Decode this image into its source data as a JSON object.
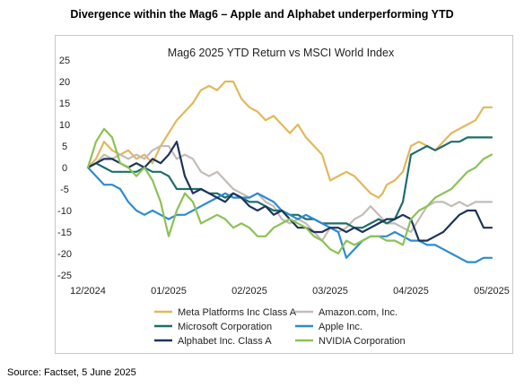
{
  "header": {
    "title": "Divergence within the Mag6 – Apple and Alphabet underperforming YTD"
  },
  "footer": {
    "source": "Source:  Factset, 5 June 2025"
  },
  "chart_data": {
    "type": "line",
    "title": "Mag6 2025 YTD Return vs MSCI World Index",
    "xlabel": "",
    "ylabel": "",
    "x_tick_labels": [
      "12/2024",
      "01/2025",
      "02/2025",
      "03/2025",
      "04/2025",
      "05/2025"
    ],
    "y_ticks": [
      25,
      20,
      15,
      10,
      5,
      0,
      -5,
      -10,
      -15,
      -20,
      -25
    ],
    "ylim": [
      -25,
      25
    ],
    "x_index_range": [
      0,
      100
    ],
    "grid": false,
    "legend_position": "bottom",
    "series": [
      {
        "name": "Meta Platforms Inc Class A",
        "color": "#E2B85A",
        "points": [
          [
            0,
            0
          ],
          [
            2,
            2
          ],
          [
            4,
            6
          ],
          [
            6,
            4
          ],
          [
            8,
            3
          ],
          [
            10,
            4
          ],
          [
            12,
            2
          ],
          [
            14,
            3
          ],
          [
            16,
            1
          ],
          [
            18,
            5
          ],
          [
            20,
            8
          ],
          [
            22,
            11
          ],
          [
            24,
            13
          ],
          [
            26,
            15
          ],
          [
            28,
            18
          ],
          [
            30,
            19
          ],
          [
            32,
            18
          ],
          [
            34,
            20
          ],
          [
            36,
            20
          ],
          [
            38,
            16
          ],
          [
            40,
            14
          ],
          [
            42,
            13
          ],
          [
            44,
            11
          ],
          [
            46,
            12
          ],
          [
            48,
            10
          ],
          [
            50,
            8
          ],
          [
            52,
            10
          ],
          [
            54,
            7
          ],
          [
            56,
            5
          ],
          [
            58,
            3
          ],
          [
            60,
            -3
          ],
          [
            62,
            -2
          ],
          [
            64,
            -1
          ],
          [
            66,
            -2
          ],
          [
            68,
            -4
          ],
          [
            70,
            -6
          ],
          [
            72,
            -7
          ],
          [
            73,
            -6
          ],
          [
            74,
            -4
          ],
          [
            76,
            -3
          ],
          [
            78,
            -1
          ],
          [
            80,
            5
          ],
          [
            82,
            6
          ],
          [
            84,
            5
          ],
          [
            86,
            4
          ],
          [
            88,
            6
          ],
          [
            90,
            8
          ],
          [
            92,
            9
          ],
          [
            94,
            10
          ],
          [
            96,
            11
          ],
          [
            98,
            14
          ],
          [
            100,
            14
          ]
        ]
      },
      {
        "name": "Amazon.com, Inc.",
        "color": "#C3BCB8",
        "points": [
          [
            0,
            0
          ],
          [
            2,
            1
          ],
          [
            4,
            3
          ],
          [
            6,
            2
          ],
          [
            8,
            3
          ],
          [
            10,
            2
          ],
          [
            12,
            3
          ],
          [
            14,
            2
          ],
          [
            16,
            4
          ],
          [
            18,
            5
          ],
          [
            20,
            5
          ],
          [
            22,
            2
          ],
          [
            24,
            3
          ],
          [
            26,
            2
          ],
          [
            28,
            -1
          ],
          [
            30,
            -2
          ],
          [
            32,
            -1
          ],
          [
            34,
            -3
          ],
          [
            36,
            -5
          ],
          [
            38,
            -6
          ],
          [
            40,
            -7
          ],
          [
            42,
            -6
          ],
          [
            44,
            -8
          ],
          [
            46,
            -9
          ],
          [
            48,
            -12
          ],
          [
            50,
            -13
          ],
          [
            52,
            -12
          ],
          [
            54,
            -13
          ],
          [
            56,
            -15
          ],
          [
            58,
            -17
          ],
          [
            60,
            -14
          ],
          [
            62,
            -15
          ],
          [
            64,
            -14
          ],
          [
            66,
            -12
          ],
          [
            68,
            -11
          ],
          [
            70,
            -9
          ],
          [
            72,
            -11
          ],
          [
            74,
            -13
          ],
          [
            76,
            -13
          ],
          [
            78,
            -14
          ],
          [
            80,
            -15
          ],
          [
            82,
            -12
          ],
          [
            84,
            -9
          ],
          [
            86,
            -8
          ],
          [
            88,
            -8
          ],
          [
            90,
            -9
          ],
          [
            92,
            -8
          ],
          [
            94,
            -9
          ],
          [
            96,
            -8
          ],
          [
            98,
            -8
          ],
          [
            100,
            -8
          ]
        ]
      },
      {
        "name": "Microsoft Corporation",
        "color": "#1F6E6A",
        "points": [
          [
            0,
            0
          ],
          [
            2,
            1
          ],
          [
            4,
            0
          ],
          [
            6,
            -1
          ],
          [
            8,
            -1
          ],
          [
            10,
            -1
          ],
          [
            12,
            -1
          ],
          [
            14,
            0
          ],
          [
            16,
            -1
          ],
          [
            18,
            -1
          ],
          [
            20,
            -2
          ],
          [
            22,
            -5
          ],
          [
            24,
            -5
          ],
          [
            26,
            -5
          ],
          [
            28,
            -5
          ],
          [
            30,
            -6
          ],
          [
            32,
            -6
          ],
          [
            34,
            -7
          ],
          [
            36,
            -6
          ],
          [
            38,
            -7
          ],
          [
            40,
            -8
          ],
          [
            42,
            -8
          ],
          [
            44,
            -9
          ],
          [
            46,
            -10
          ],
          [
            48,
            -10
          ],
          [
            50,
            -11
          ],
          [
            52,
            -11
          ],
          [
            54,
            -12
          ],
          [
            56,
            -12
          ],
          [
            58,
            -13
          ],
          [
            60,
            -13
          ],
          [
            62,
            -13
          ],
          [
            64,
            -13
          ],
          [
            66,
            -14
          ],
          [
            68,
            -14
          ],
          [
            70,
            -13
          ],
          [
            72,
            -12
          ],
          [
            74,
            -13
          ],
          [
            76,
            -12
          ],
          [
            78,
            -8
          ],
          [
            80,
            3
          ],
          [
            82,
            4
          ],
          [
            84,
            5
          ],
          [
            86,
            4
          ],
          [
            88,
            5
          ],
          [
            90,
            6
          ],
          [
            92,
            6
          ],
          [
            94,
            7
          ],
          [
            96,
            7
          ],
          [
            98,
            7
          ],
          [
            100,
            7
          ]
        ]
      },
      {
        "name": "Apple Inc.",
        "color": "#2E8BD1",
        "points": [
          [
            0,
            0
          ],
          [
            2,
            -2
          ],
          [
            4,
            -4
          ],
          [
            6,
            -4
          ],
          [
            8,
            -5
          ],
          [
            10,
            -8
          ],
          [
            12,
            -10
          ],
          [
            14,
            -11
          ],
          [
            16,
            -10
          ],
          [
            18,
            -11
          ],
          [
            20,
            -12
          ],
          [
            22,
            -11
          ],
          [
            24,
            -11
          ],
          [
            26,
            -10
          ],
          [
            28,
            -9
          ],
          [
            30,
            -8
          ],
          [
            32,
            -7
          ],
          [
            34,
            -6
          ],
          [
            36,
            -7
          ],
          [
            38,
            -7
          ],
          [
            40,
            -7
          ],
          [
            42,
            -6
          ],
          [
            44,
            -7
          ],
          [
            46,
            -8
          ],
          [
            48,
            -10
          ],
          [
            50,
            -11
          ],
          [
            52,
            -12
          ],
          [
            54,
            -11
          ],
          [
            56,
            -12
          ],
          [
            58,
            -13
          ],
          [
            60,
            -14
          ],
          [
            62,
            -15
          ],
          [
            64,
            -21
          ],
          [
            66,
            -19
          ],
          [
            68,
            -17
          ],
          [
            70,
            -16
          ],
          [
            72,
            -16
          ],
          [
            74,
            -16
          ],
          [
            76,
            -15
          ],
          [
            78,
            -16
          ],
          [
            80,
            -17
          ],
          [
            82,
            -17
          ],
          [
            84,
            -18
          ],
          [
            86,
            -18
          ],
          [
            88,
            -19
          ],
          [
            90,
            -20
          ],
          [
            92,
            -21
          ],
          [
            94,
            -22
          ],
          [
            96,
            -22
          ],
          [
            98,
            -21
          ],
          [
            100,
            -21
          ]
        ]
      },
      {
        "name": "Alphabet Inc. Class A",
        "color": "#1D3557",
        "points": [
          [
            0,
            0
          ],
          [
            2,
            1
          ],
          [
            4,
            2
          ],
          [
            6,
            2
          ],
          [
            8,
            1
          ],
          [
            10,
            0
          ],
          [
            12,
            1
          ],
          [
            14,
            0
          ],
          [
            16,
            2
          ],
          [
            18,
            1
          ],
          [
            20,
            3
          ],
          [
            22,
            6
          ],
          [
            24,
            -2
          ],
          [
            26,
            -6
          ],
          [
            28,
            -5
          ],
          [
            30,
            -6
          ],
          [
            32,
            -7
          ],
          [
            34,
            -8
          ],
          [
            36,
            -6
          ],
          [
            38,
            -7
          ],
          [
            40,
            -9
          ],
          [
            42,
            -10
          ],
          [
            44,
            -9
          ],
          [
            46,
            -11
          ],
          [
            48,
            -10
          ],
          [
            50,
            -12
          ],
          [
            52,
            -14
          ],
          [
            54,
            -14
          ],
          [
            56,
            -15
          ],
          [
            58,
            -15
          ],
          [
            60,
            -14
          ],
          [
            62,
            -14
          ],
          [
            64,
            -15
          ],
          [
            66,
            -14
          ],
          [
            68,
            -15
          ],
          [
            70,
            -14
          ],
          [
            72,
            -13
          ],
          [
            74,
            -12
          ],
          [
            76,
            -12
          ],
          [
            78,
            -11
          ],
          [
            80,
            -12
          ],
          [
            82,
            -17
          ],
          [
            84,
            -17
          ],
          [
            86,
            -16
          ],
          [
            88,
            -15
          ],
          [
            90,
            -13
          ],
          [
            92,
            -11
          ],
          [
            94,
            -10
          ],
          [
            96,
            -10
          ],
          [
            98,
            -14
          ],
          [
            100,
            -14
          ]
        ]
      },
      {
        "name": "NVIDIA Corporation",
        "color": "#8CC255",
        "points": [
          [
            0,
            0
          ],
          [
            2,
            6
          ],
          [
            4,
            9
          ],
          [
            6,
            7
          ],
          [
            8,
            1
          ],
          [
            10,
            0
          ],
          [
            12,
            -2
          ],
          [
            14,
            0
          ],
          [
            16,
            -3
          ],
          [
            18,
            -8
          ],
          [
            20,
            -16
          ],
          [
            22,
            -10
          ],
          [
            24,
            -6
          ],
          [
            26,
            -8
          ],
          [
            28,
            -13
          ],
          [
            30,
            -12
          ],
          [
            32,
            -11
          ],
          [
            34,
            -12
          ],
          [
            36,
            -14
          ],
          [
            38,
            -13
          ],
          [
            40,
            -14
          ],
          [
            42,
            -16
          ],
          [
            44,
            -16
          ],
          [
            46,
            -14
          ],
          [
            48,
            -13
          ],
          [
            50,
            -12
          ],
          [
            52,
            -13
          ],
          [
            54,
            -14
          ],
          [
            56,
            -16
          ],
          [
            58,
            -17
          ],
          [
            60,
            -19
          ],
          [
            62,
            -20
          ],
          [
            64,
            -17
          ],
          [
            66,
            -18
          ],
          [
            68,
            -17
          ],
          [
            70,
            -16
          ],
          [
            72,
            -16
          ],
          [
            74,
            -17
          ],
          [
            76,
            -17
          ],
          [
            78,
            -18
          ],
          [
            80,
            -12
          ],
          [
            82,
            -10
          ],
          [
            84,
            -9
          ],
          [
            86,
            -7
          ],
          [
            88,
            -6
          ],
          [
            90,
            -5
          ],
          [
            92,
            -3
          ],
          [
            94,
            -1
          ],
          [
            96,
            0
          ],
          [
            98,
            2
          ],
          [
            100,
            3
          ]
        ]
      }
    ]
  }
}
